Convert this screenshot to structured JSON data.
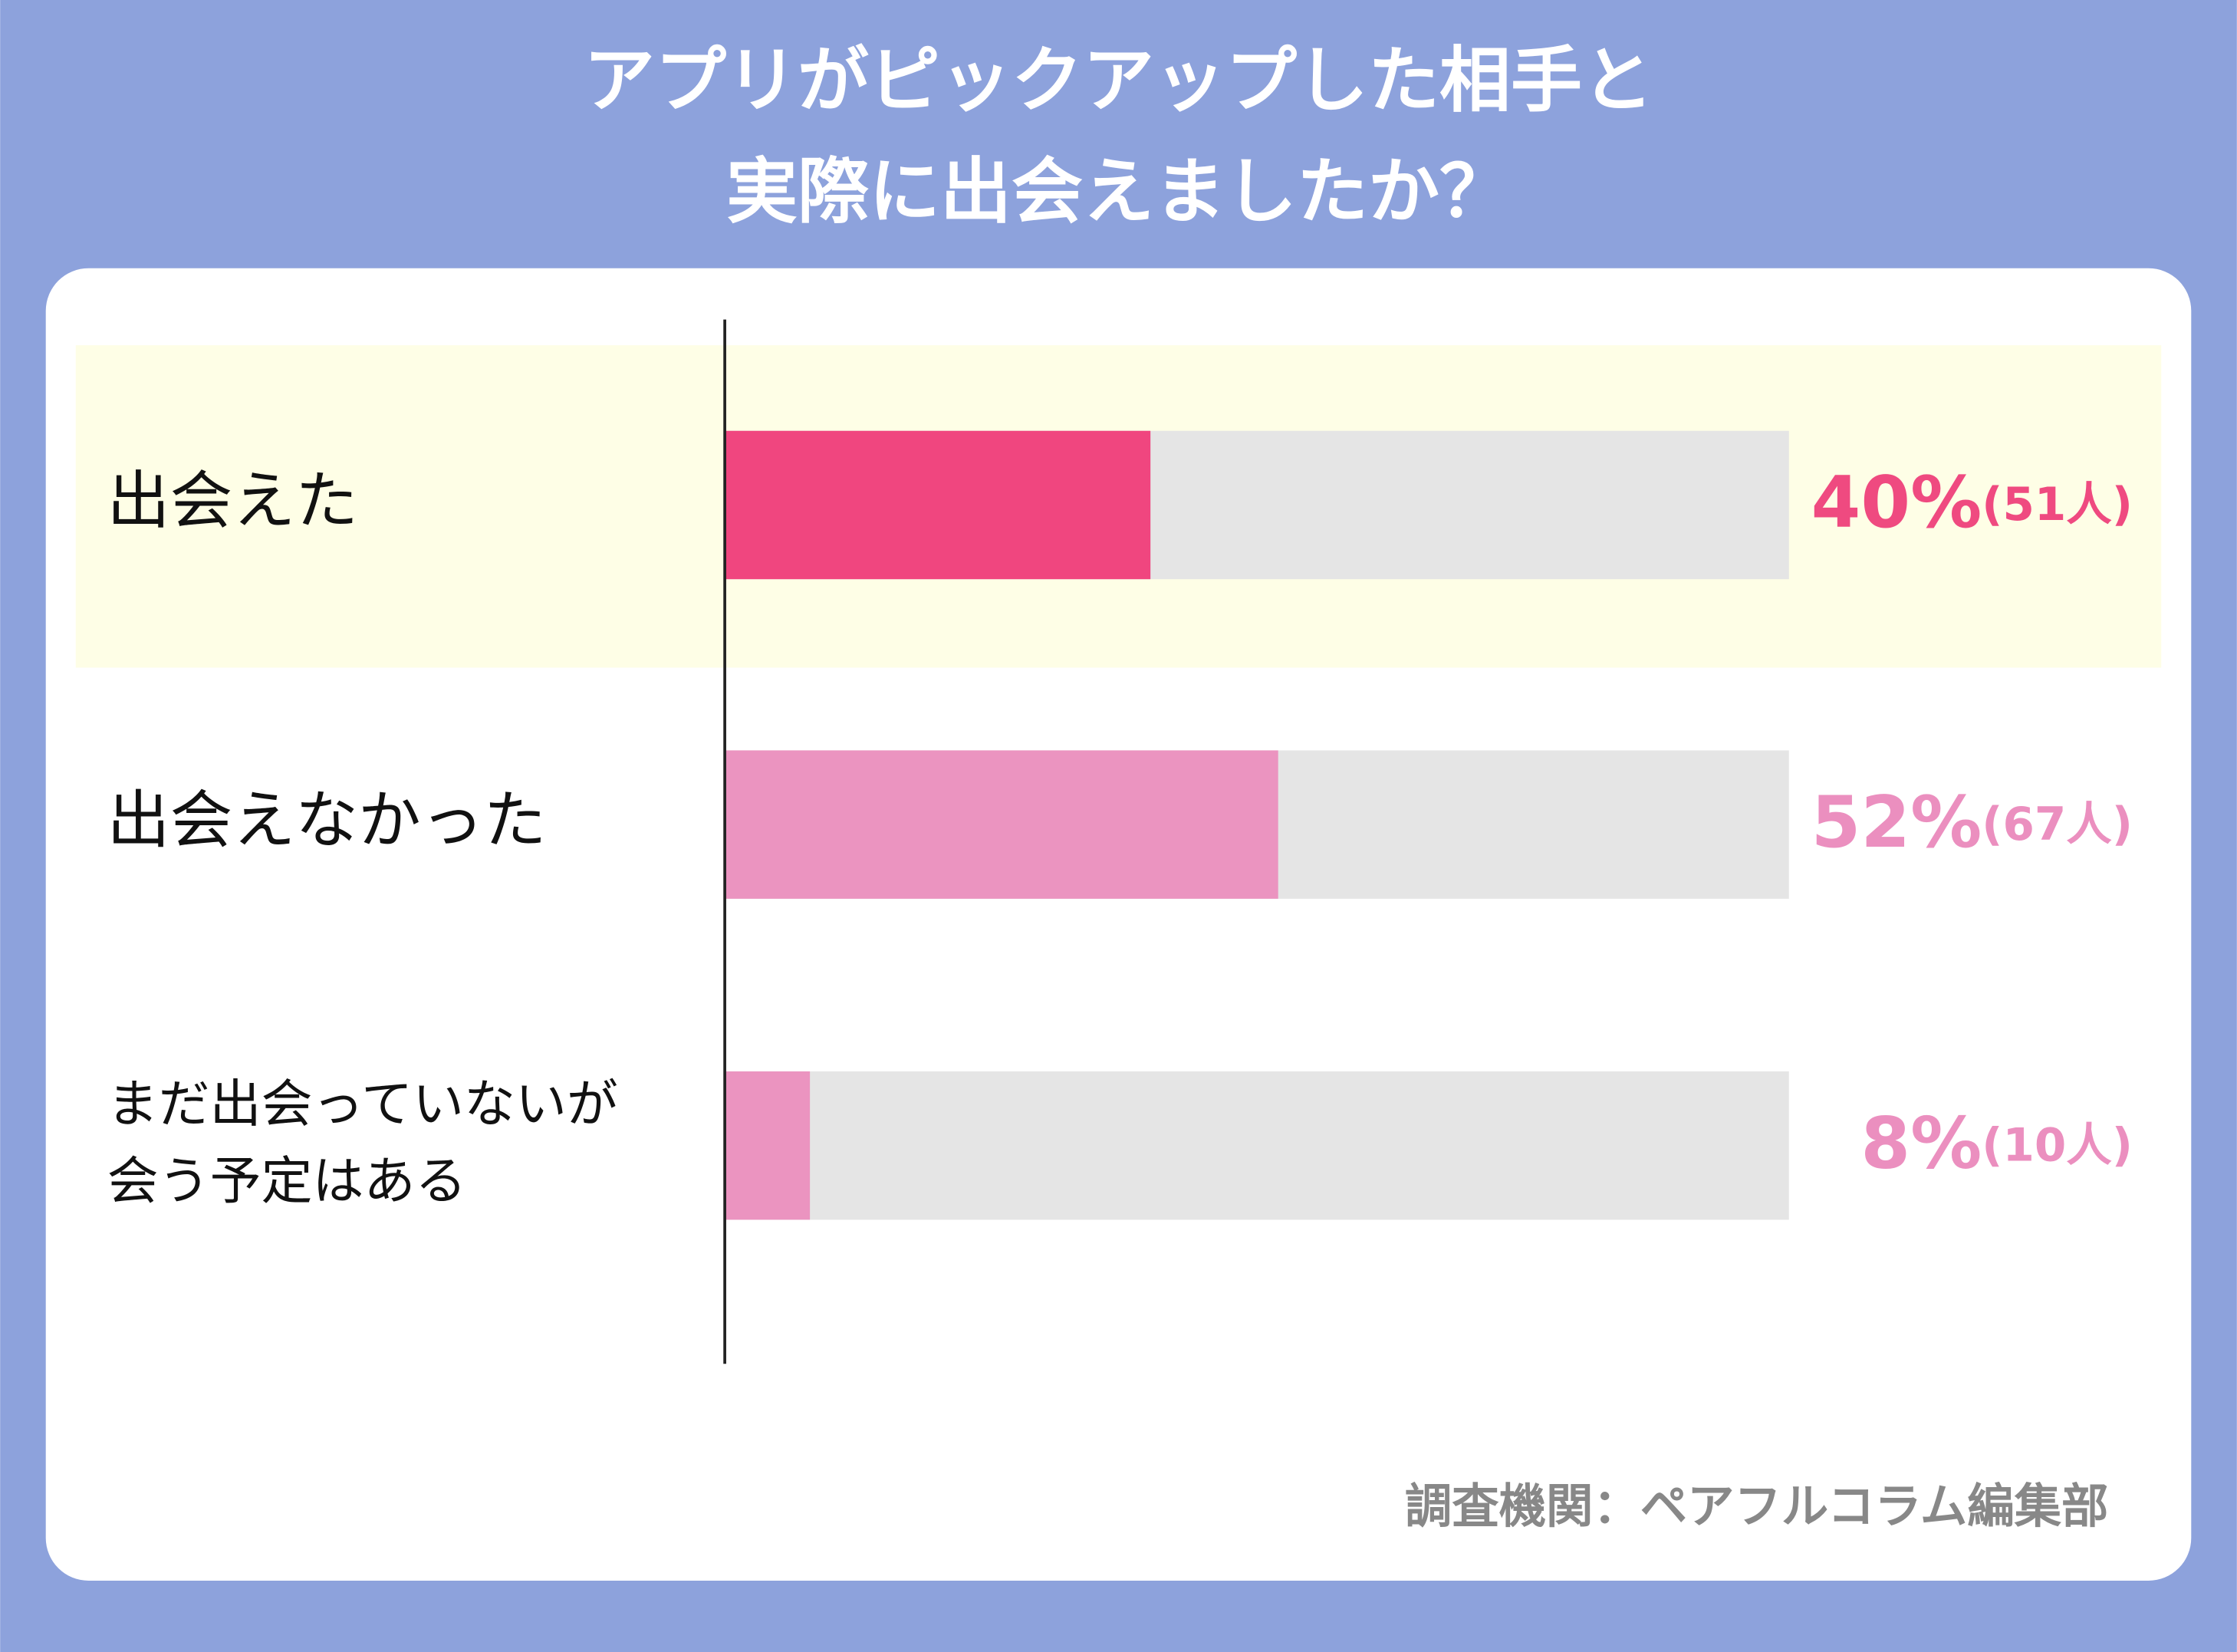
{
  "chart_data": {
    "type": "bar",
    "title": [
      "アプリがピックアップした相手と",
      "実際に出会えましたか？"
    ],
    "categories": [
      "出会えた",
      "出会えなかった",
      "まだ出会っていないが\n会う予定はある"
    ],
    "values": [
      40,
      52,
      8
    ],
    "value_labels": [
      "40%",
      "52%",
      "8%"
    ],
    "count_labels": [
      "(51人)",
      "(67人)",
      "(10人)"
    ],
    "colors": [
      "#f0467f",
      "#eb94c0",
      "#eb94c0"
    ],
    "label_colors": [
      "#ef4a80",
      "#eb8fbf",
      "#eb8fbf"
    ],
    "xlim": [
      0,
      100
    ],
    "source": "調査機関：ペアフルコラム編集部"
  }
}
